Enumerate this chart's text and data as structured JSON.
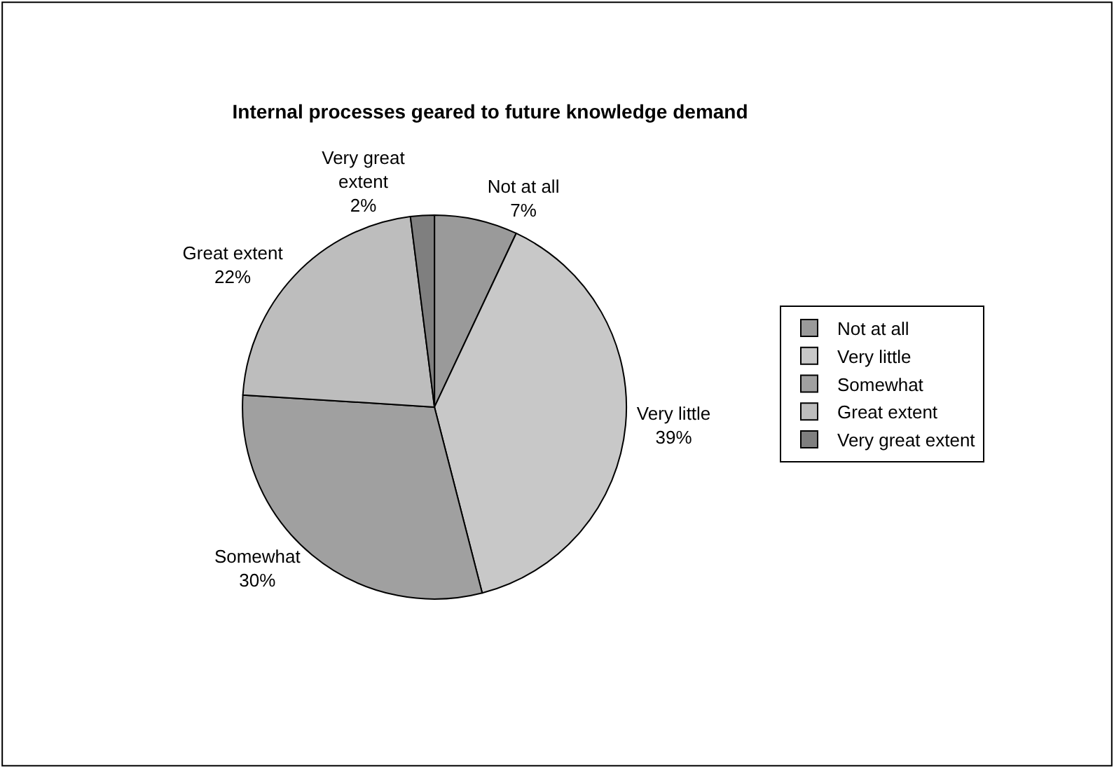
{
  "chart_data": {
    "type": "pie",
    "title": "Internal processes geared to future knowledge demand",
    "categories": [
      "Not at all",
      "Very little",
      "Somewhat",
      "Great extent",
      "Very great extent"
    ],
    "values": [
      7,
      39,
      30,
      22,
      2
    ],
    "value_labels": [
      "7%",
      "39%",
      "30%",
      "22%",
      "2%"
    ],
    "colors": [
      "#9a9a9a",
      "#c8c8c8",
      "#a0a0a0",
      "#bdbdbd",
      "#7f7f7f"
    ],
    "legend": "right"
  }
}
